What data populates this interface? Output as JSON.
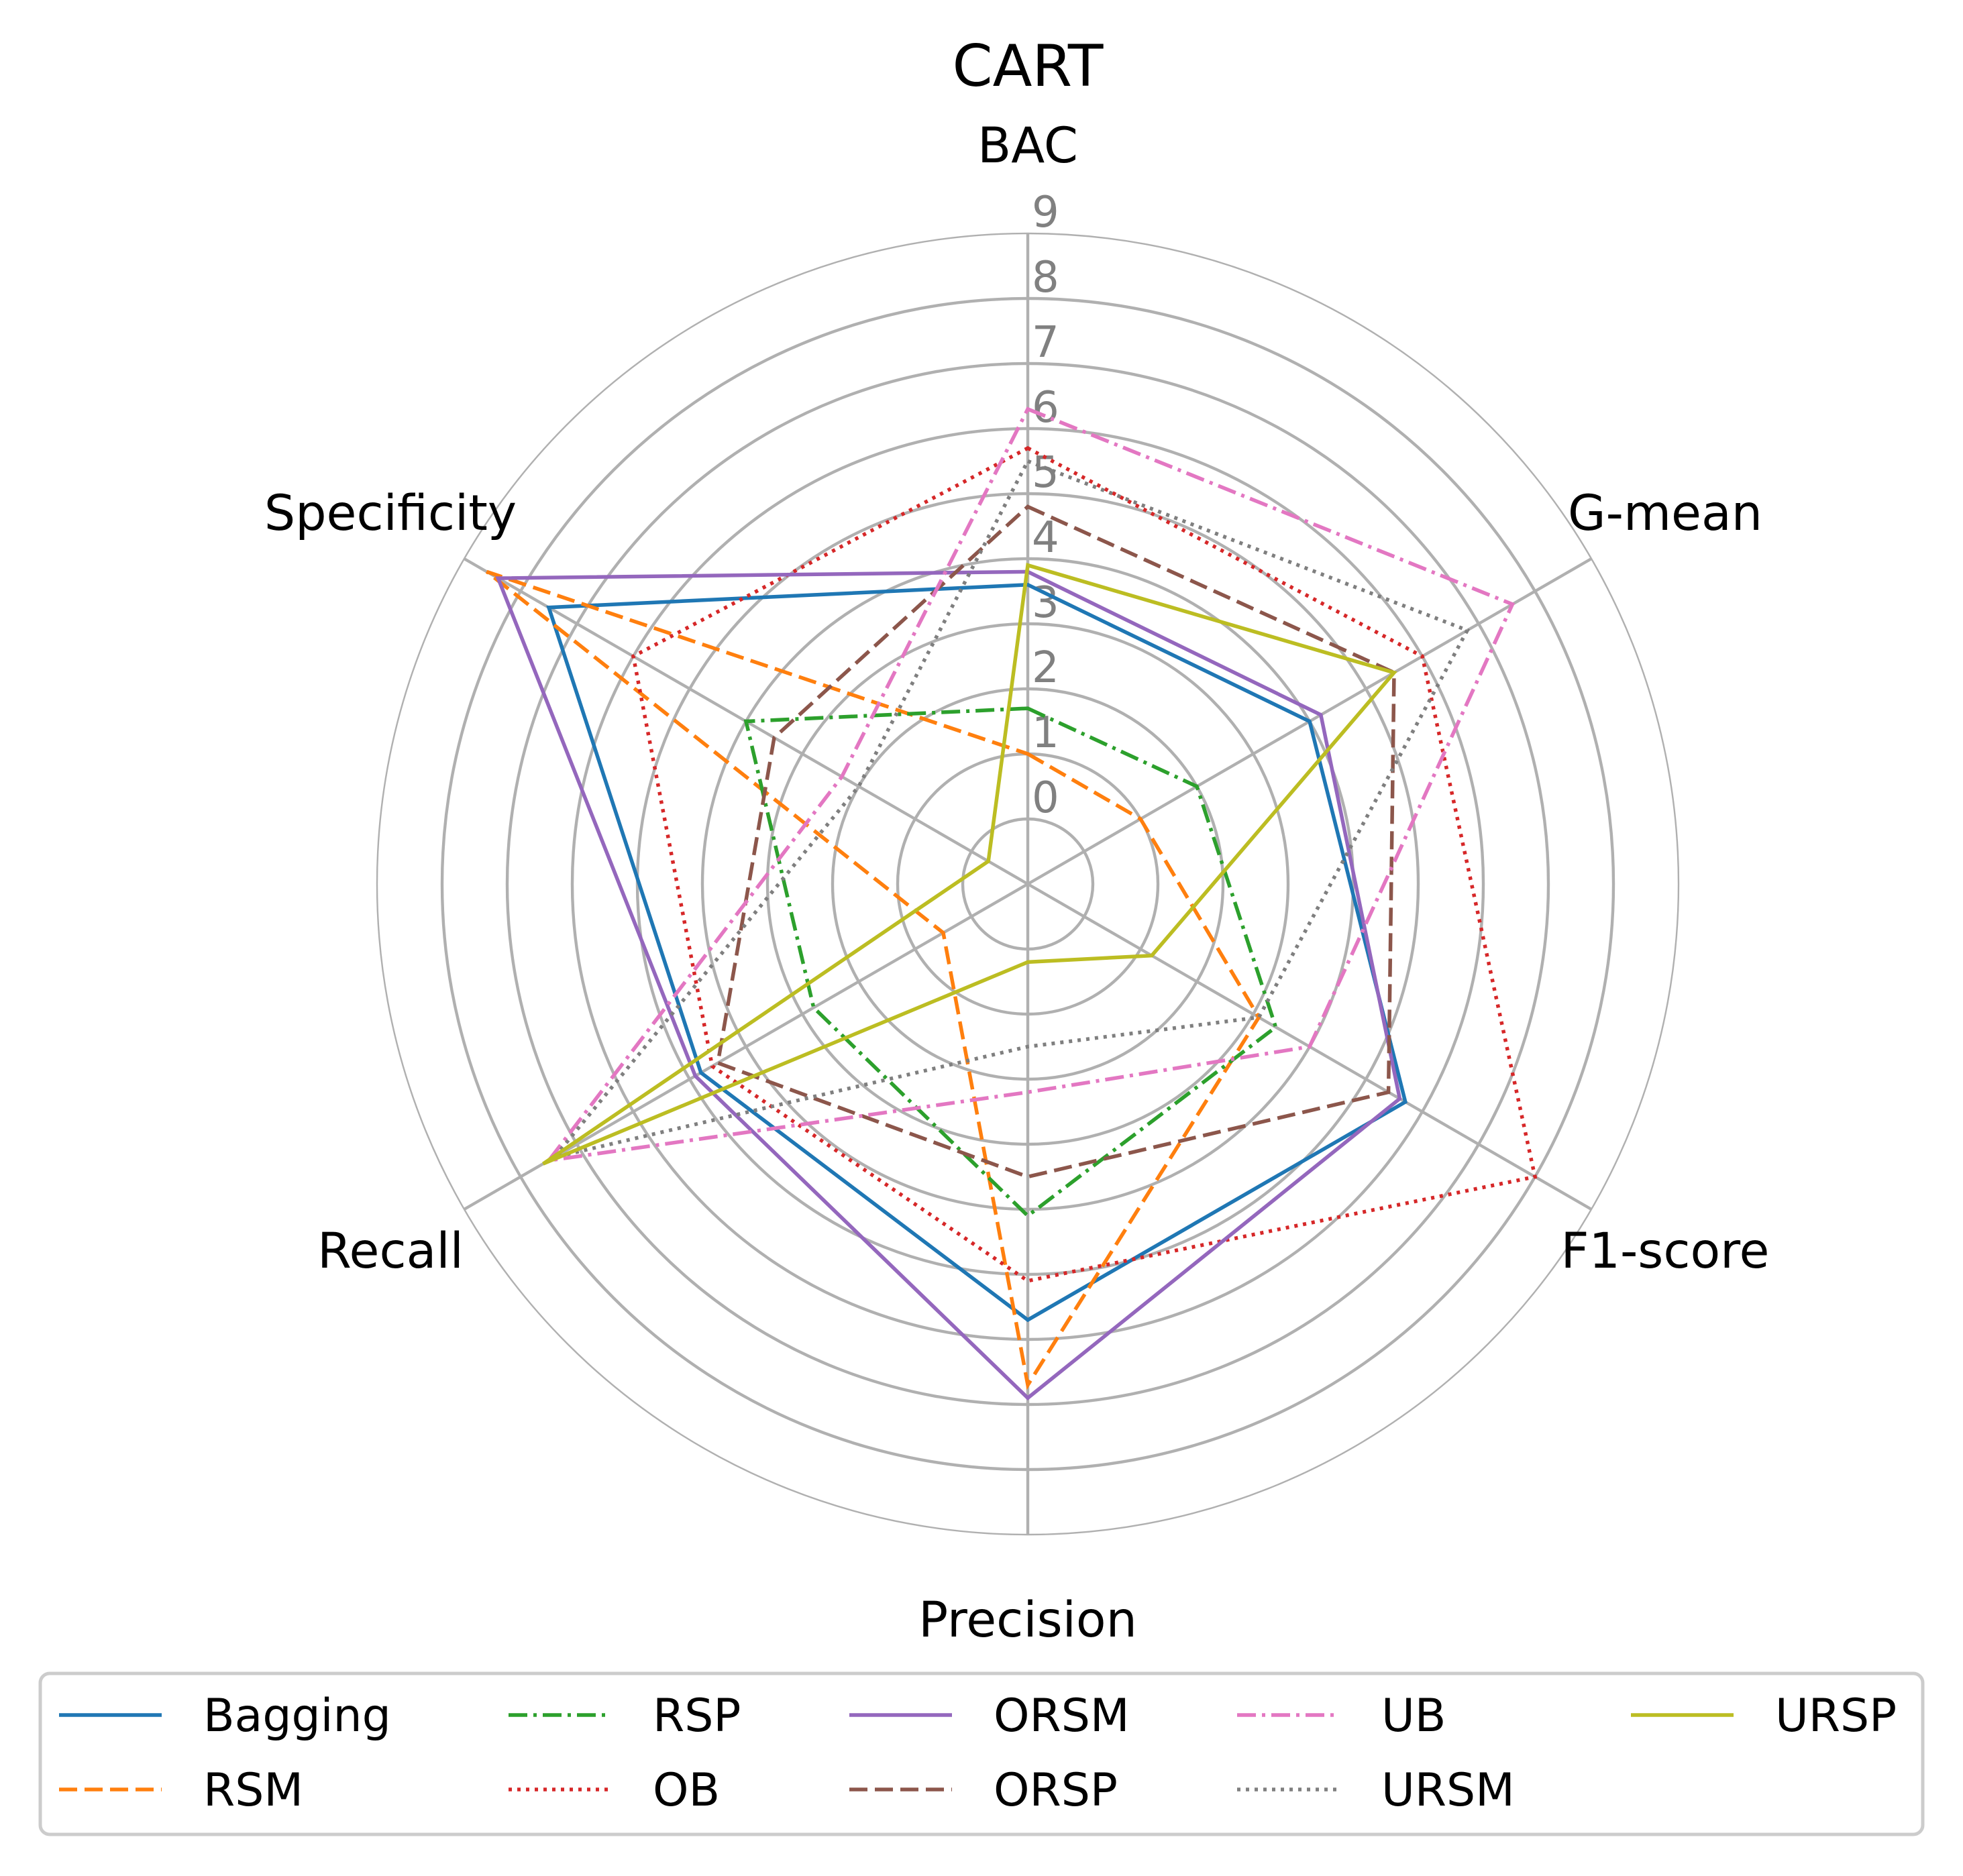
{
  "chart_data": {
    "type": "radar",
    "title": "CART",
    "axes": [
      "BAC",
      "G-mean",
      "F1-score",
      "Precision",
      "Recall",
      "Specificity"
    ],
    "radial_ticks": [
      "0",
      "1",
      "2",
      "3",
      "4",
      "5",
      "6",
      "7",
      "8",
      "9"
    ],
    "rlim": [
      -1,
      9
    ],
    "grid": true,
    "legend_position": "bottom",
    "legend_columns": 5,
    "series": [
      {
        "name": "Bagging",
        "color": "#1f77b4",
        "dash": "solid",
        "values": [
          3.6,
          4.0,
          5.7,
          5.7,
          4.8,
          7.5
        ]
      },
      {
        "name": "RSM",
        "color": "#ff7f0e",
        "dash": "dashed",
        "values": [
          1.0,
          1.0,
          3.1,
          6.7,
          0.5,
          8.6
        ]
      },
      {
        "name": "RSP",
        "color": "#2ca02c",
        "dash": "dashdot",
        "values": [
          1.7,
          2.0,
          3.4,
          4.1,
          2.8,
          4.0
        ]
      },
      {
        "name": "OB",
        "color": "#d62728",
        "dash": "dotted",
        "values": [
          5.7,
          6.0,
          8.0,
          5.1,
          4.6,
          6.0
        ]
      },
      {
        "name": "ORSM",
        "color": "#9467bd",
        "dash": "solid",
        "values": [
          3.8,
          4.2,
          5.6,
          6.9,
          4.9,
          8.4
        ]
      },
      {
        "name": "ORSP",
        "color": "#8c564b",
        "dash": "dashed",
        "values": [
          4.8,
          5.5,
          5.4,
          3.5,
          4.5,
          3.5
        ]
      },
      {
        "name": "UB",
        "color": "#e377c2",
        "dash": "dashdot",
        "values": [
          6.3,
          7.6,
          4.0,
          2.2,
          7.5,
          2.3
        ]
      },
      {
        "name": "URSM",
        "color": "#7f7f7f",
        "dash": "dotted",
        "values": [
          5.5,
          6.8,
          3.1,
          1.5,
          7.4,
          2.0
        ]
      },
      {
        "name": "URSP",
        "color": "#bcbd22",
        "dash": "solid",
        "values": [
          3.9,
          5.5,
          1.2,
          0.2,
          7.6,
          -0.3
        ]
      }
    ]
  }
}
